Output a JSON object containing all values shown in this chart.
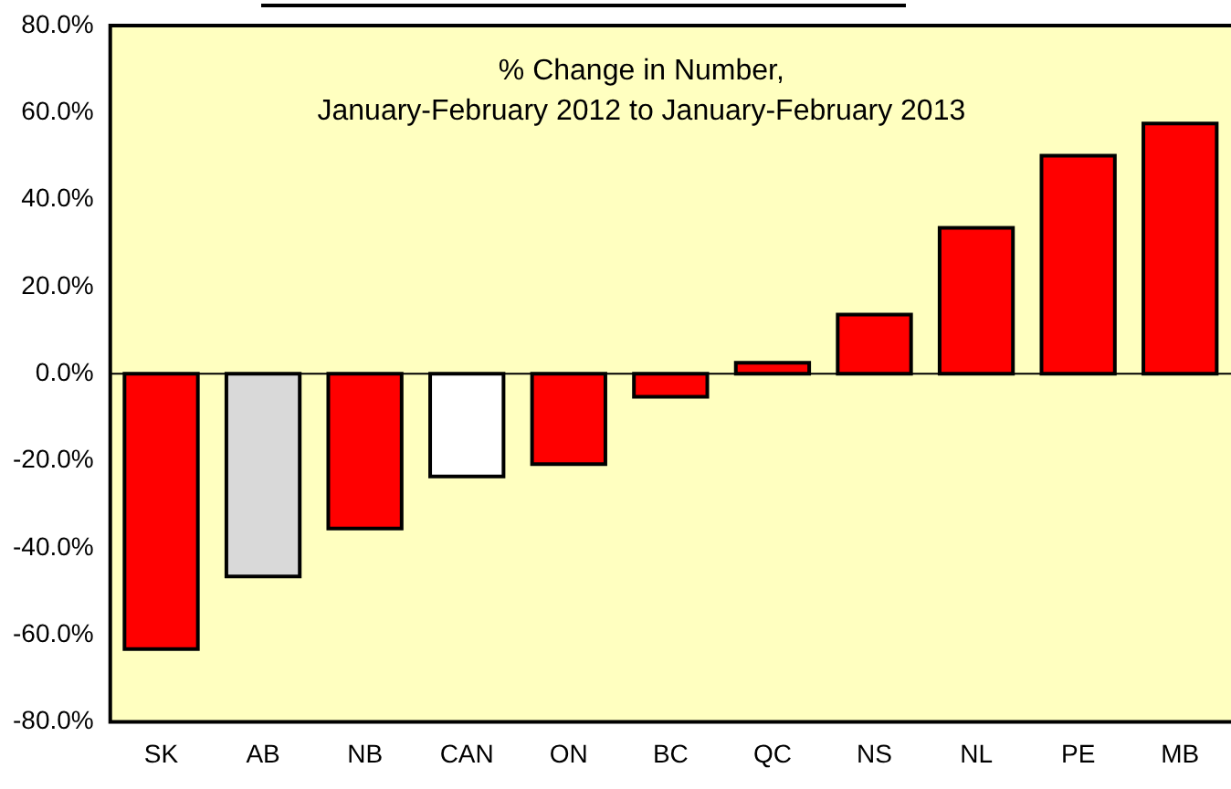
{
  "chart_data": {
    "type": "bar",
    "title": "% Change in Number,\nJanuary-February 2012 to January-February 2013",
    "categories": [
      "SK",
      "AB",
      "NB",
      "CAN",
      "ON",
      "BC",
      "QC",
      "NS",
      "NL",
      "PE",
      "MB"
    ],
    "values": [
      -63.3,
      -46.6,
      -35.6,
      -23.6,
      -20.8,
      -5.3,
      2.5,
      13.6,
      33.5,
      50.1,
      57.5
    ],
    "colors": [
      "#ff0000",
      "#d9d9d9",
      "#ff0000",
      "#ffffff",
      "#ff0000",
      "#ff0000",
      "#ff0000",
      "#ff0000",
      "#ff0000",
      "#ff0000",
      "#ff0000"
    ],
    "ylim": [
      -80,
      80
    ],
    "yticks": [
      {
        "value": -80,
        "label": "-80.0%"
      },
      {
        "value": -60,
        "label": "-60.0%"
      },
      {
        "value": -40,
        "label": "-40.0%"
      },
      {
        "value": -20,
        "label": "-20.0%"
      },
      {
        "value": 0,
        "label": "0.0%"
      },
      {
        "value": 20,
        "label": "20.0%"
      },
      {
        "value": 40,
        "label": "40.0%"
      },
      {
        "value": 60,
        "label": "60.0%"
      },
      {
        "value": 80,
        "label": "80.0%"
      }
    ],
    "ref_lines": [
      {
        "axis": "y",
        "value": 0,
        "color": "#000000"
      }
    ],
    "grid": false,
    "legend": false
  }
}
